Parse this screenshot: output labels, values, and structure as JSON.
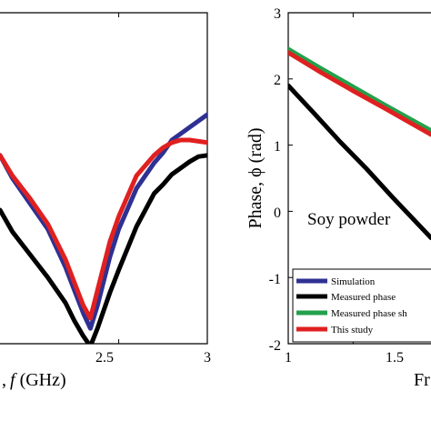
{
  "chart_data": [
    {
      "type": "line",
      "xlabel": ", f (GHz)",
      "ylabel": "",
      "xlim": [
        1.83,
        3.0
      ],
      "ylim": [
        -2.4,
        0.2
      ],
      "xticks": [
        "2.5",
        "3"
      ],
      "xtick_values": [
        2.5,
        3.0
      ],
      "yticks": [],
      "grid": false,
      "legend": "none",
      "series": [
        {
          "color": "#2e3192",
          "x": [
            1.83,
            1.9,
            2.0,
            2.1,
            2.2,
            2.25,
            2.3,
            2.34,
            2.38,
            2.45,
            2.5,
            2.6,
            2.7,
            2.75,
            2.8,
            2.85,
            2.9,
            2.95,
            3.0
          ],
          "y": [
            -0.92,
            -1.1,
            -1.3,
            -1.5,
            -1.8,
            -1.98,
            -2.16,
            -2.28,
            -2.1,
            -1.72,
            -1.5,
            -1.18,
            -0.98,
            -0.9,
            -0.8,
            -0.75,
            -0.7,
            -0.65,
            -0.6
          ]
        },
        {
          "color": "#000000",
          "x": [
            1.83,
            1.9,
            2.0,
            2.1,
            2.2,
            2.25,
            2.3,
            2.34,
            2.38,
            2.45,
            2.5,
            2.6,
            2.7,
            2.75,
            2.8,
            2.85,
            2.9,
            2.95,
            3.0
          ],
          "y": [
            -1.35,
            -1.52,
            -1.7,
            -1.88,
            -2.08,
            -2.22,
            -2.34,
            -2.42,
            -2.28,
            -2.0,
            -1.82,
            -1.48,
            -1.22,
            -1.15,
            -1.07,
            -1.02,
            -0.97,
            -0.93,
            -0.92
          ]
        },
        {
          "color": "#e02020",
          "x": [
            1.83,
            1.9,
            2.0,
            2.1,
            2.2,
            2.25,
            2.3,
            2.34,
            2.38,
            2.45,
            2.5,
            2.6,
            2.7,
            2.75,
            2.8,
            2.85,
            2.9,
            2.95,
            3.0
          ],
          "y": [
            -0.92,
            -1.08,
            -1.26,
            -1.46,
            -1.74,
            -1.92,
            -2.1,
            -2.2,
            -1.98,
            -1.6,
            -1.4,
            -1.08,
            -0.92,
            -0.86,
            -0.82,
            -0.8,
            -0.8,
            -0.81,
            -0.82
          ]
        }
      ]
    },
    {
      "type": "line",
      "annotation": "Soy powder",
      "xlabel": "Fr",
      "ylabel": "Phase, ϕ (rad)",
      "xlim": [
        1.0,
        2.1
      ],
      "ylim": [
        -2,
        3
      ],
      "xticks": [
        "1",
        "1.5"
      ],
      "xtick_values": [
        1.0,
        1.5
      ],
      "yticks": [
        "-2",
        "-1",
        "0",
        "1",
        "2",
        "3"
      ],
      "ytick_values": [
        -2,
        -1,
        0,
        1,
        2,
        3
      ],
      "grid": false,
      "legend": "bottom-left",
      "legend_entries": [
        "Simulation",
        "Measured phase",
        "Measured phase sh",
        "This study"
      ],
      "series": [
        {
          "name": "Simulation",
          "color": "#2e3192",
          "x": [
            1.0,
            1.25,
            1.5,
            1.75,
            2.1
          ],
          "y": [
            2.4,
            2.12,
            1.85,
            1.58,
            1.2
          ]
        },
        {
          "name": "Measured phase",
          "color": "#000000",
          "x": [
            1.0,
            1.2,
            1.4,
            1.6,
            1.8,
            2.1
          ],
          "y": [
            1.9,
            1.48,
            1.05,
            0.65,
            0.22,
            -0.4
          ]
        },
        {
          "name": "Measured phase sh",
          "color": "#22a14a",
          "x": [
            1.0,
            1.25,
            1.5,
            1.75,
            2.1
          ],
          "y": [
            2.45,
            2.16,
            1.88,
            1.6,
            1.22
          ]
        },
        {
          "name": "This study",
          "color": "#e02020",
          "x": [
            1.0,
            1.25,
            1.5,
            1.75,
            2.1
          ],
          "y": [
            2.4,
            2.1,
            1.82,
            1.55,
            1.16
          ]
        }
      ]
    }
  ]
}
